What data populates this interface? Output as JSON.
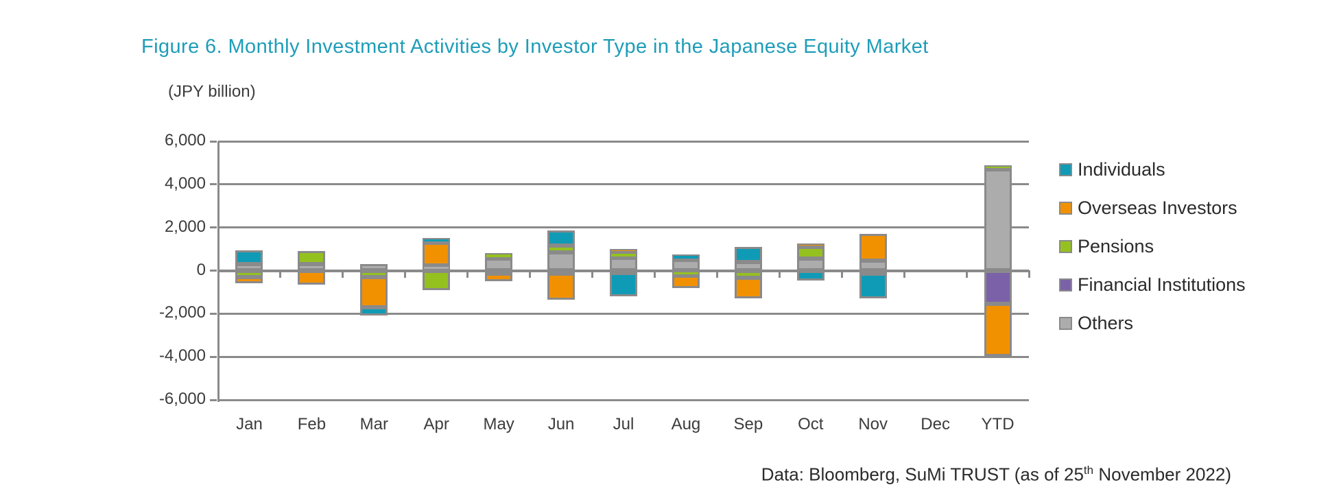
{
  "title": "Figure 6. Monthly Investment Activities by Investor Type in the Japanese Equity Market",
  "axis_unit_label": "(JPY billion)",
  "source_note": {
    "prefix": "Data: Bloomberg, SuMi TRUST (as of 25",
    "superscript": "th",
    "suffix": " November 2022)"
  },
  "colors": {
    "title_accent": "#1E9DB8",
    "individuals": "#0F9BB6",
    "overseas_investors": "#F29100",
    "pensions": "#95C11F",
    "financial_institutions": "#7B62A8",
    "others": "#ACACAC",
    "grid_and_borders": "#8A8A8A",
    "text": "#3C3C3C"
  },
  "y_axis": {
    "tick_labels": [
      "6,000",
      "4,000",
      "2,000",
      "0",
      "-2,000",
      "-4,000",
      "-6,000"
    ],
    "tick_values": [
      6000,
      4000,
      2000,
      0,
      -2000,
      -4000,
      -6000
    ]
  },
  "chart_data": {
    "type": "bar",
    "stacked": true,
    "title": "Figure 6. Monthly Investment Activities by Investor Type in the Japanese Equity Market",
    "ylabel": "(JPY billion)",
    "ylim": [
      -6000,
      6000
    ],
    "ytick_step": 2000,
    "grid": true,
    "legend_position": "right",
    "categories": [
      "Jan",
      "Feb",
      "Mar",
      "Apr",
      "May",
      "Jun",
      "Jul",
      "Aug",
      "Sep",
      "Oct",
      "Nov",
      "Dec",
      "YTD"
    ],
    "series": [
      {
        "name": "Individuals",
        "color_key": "individuals",
        "values": [
          650,
          0,
          -400,
          200,
          0,
          700,
          -1100,
          250,
          700,
          -450,
          -1150,
          0,
          0
        ]
      },
      {
        "name": "Overseas Investors",
        "color_key": "overseas_investors",
        "values": [
          -300,
          -650,
          -1400,
          1050,
          -350,
          -1200,
          150,
          -550,
          -950,
          150,
          1250,
          0,
          -2400
        ]
      },
      {
        "name": "Pensions",
        "color_key": "pensions",
        "values": [
          -300,
          600,
          -300,
          -900,
          250,
          300,
          250,
          -250,
          -350,
          550,
          0,
          0,
          200
        ]
      },
      {
        "name": "Financial Institutions",
        "color_key": "financial_institutions",
        "values": [
          0,
          0,
          0,
          0,
          -150,
          -150,
          -100,
          0,
          0,
          0,
          -150,
          0,
          -1550
        ]
      },
      {
        "name": "Others",
        "color_key": "others",
        "values": [
          300,
          300,
          300,
          250,
          550,
          850,
          600,
          500,
          400,
          550,
          450,
          0,
          4700
        ]
      }
    ],
    "stack_order_from_axis": [
      "Others",
      "Financial Institutions",
      "Pensions",
      "Overseas Investors",
      "Individuals"
    ]
  }
}
